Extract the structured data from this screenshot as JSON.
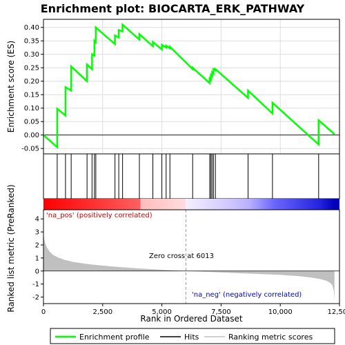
{
  "chart_data": {
    "type": "line",
    "title": "Enrichment plot: BIOCARTA_ERK_PATHWAY",
    "es_panel": {
      "ylabel": "Enrichment score (ES)",
      "ylim": [
        -0.07,
        0.43
      ],
      "yticks": [
        -0.05,
        0.0,
        0.05,
        0.1,
        0.15,
        0.2,
        0.25,
        0.3,
        0.35,
        0.4
      ],
      "ytick_labels": [
        "-0.05",
        "0.00",
        "0.05",
        "0.10",
        "0.15",
        "0.20",
        "0.25",
        "0.30",
        "0.35",
        "0.40"
      ],
      "series": [
        {
          "name": "Enrichment profile",
          "color": "#00ff00",
          "x": [
            0,
            580,
            580,
            930,
            930,
            1170,
            1170,
            1840,
            1840,
            2050,
            2050,
            2150,
            2150,
            2210,
            2210,
            3020,
            3020,
            3180,
            3180,
            3340,
            3340,
            4050,
            4050,
            4620,
            4620,
            5000,
            5000,
            5180,
            5180,
            5340,
            5340,
            6300,
            6300,
            7020,
            7020,
            7070,
            7070,
            7120,
            7120,
            7180,
            7180,
            7260,
            7260,
            8640,
            8640,
            9670,
            9670,
            11620,
            11620,
            12290
          ],
          "y": [
            0.0,
            -0.045,
            0.098,
            0.072,
            0.178,
            0.165,
            0.255,
            0.2,
            0.262,
            0.245,
            0.3,
            0.295,
            0.35,
            0.345,
            0.4,
            0.338,
            0.37,
            0.362,
            0.39,
            0.385,
            0.41,
            0.355,
            0.375,
            0.33,
            0.346,
            0.318,
            0.335,
            0.325,
            0.332,
            0.322,
            0.328,
            0.245,
            0.25,
            0.193,
            0.21,
            0.205,
            0.222,
            0.217,
            0.233,
            0.228,
            0.245,
            0.24,
            0.245,
            0.138,
            0.165,
            0.08,
            0.12,
            -0.035,
            0.055,
            0.003
          ]
        }
      ]
    },
    "hits": {
      "name": "Hits",
      "color": "#000000",
      "x": [
        580,
        930,
        1170,
        1840,
        2050,
        2150,
        2210,
        3020,
        3180,
        3340,
        4050,
        4620,
        5000,
        5180,
        5340,
        6300,
        7020,
        7070,
        7120,
        7180,
        7260,
        8640,
        9670,
        11620
      ]
    },
    "metric_panel": {
      "name": "Ranking metric scores",
      "color": "#c0c0c0",
      "ylabel": "Ranked list metric (PreRanked)",
      "ylim": [
        -2.5,
        4.7
      ],
      "yticks": [
        -2,
        -1,
        0,
        1,
        2,
        3,
        4
      ],
      "ytick_labels": [
        "-2",
        "-1",
        "0",
        "1",
        "2",
        "3",
        "4"
      ],
      "profile_x": [
        0,
        30,
        80,
        150,
        250,
        400,
        600,
        900,
        1300,
        2000,
        3000,
        4000,
        5000,
        6013,
        7000,
        8000,
        9000,
        10000,
        10800,
        11300,
        11700,
        11950,
        12100,
        12200,
        12260,
        12290
      ],
      "profile_y": [
        2.9,
        2.5,
        2.1,
        1.8,
        1.5,
        1.25,
        1.05,
        0.85,
        0.68,
        0.5,
        0.33,
        0.2,
        0.1,
        0.0,
        -0.07,
        -0.15,
        -0.22,
        -0.3,
        -0.4,
        -0.5,
        -0.62,
        -0.75,
        -0.9,
        -1.1,
        -1.5,
        -2.3
      ],
      "zero_cross_label": "Zero cross at 6013",
      "zero_cross_x": 6013,
      "pos_label": "'na_pos' (positively correlated)",
      "neg_label": "'na_neg' (negatively correlated)",
      "pos_color": "#cc0000",
      "neg_color": "#0000cc"
    },
    "xaxis": {
      "xlabel": "Rank in Ordered Dataset",
      "xlim": [
        0,
        12500
      ],
      "xticks": [
        0,
        2500,
        5000,
        7500,
        10000,
        12500
      ],
      "xtick_labels": [
        "0",
        "2,500",
        "5,000",
        "7,500",
        "10,000",
        "12,500"
      ]
    },
    "legend": {
      "placement": "bottom",
      "items": [
        {
          "label": "Enrichment profile",
          "color": "#00ff00"
        },
        {
          "label": "Hits",
          "color": "#000000"
        },
        {
          "label": "Ranking metric scores",
          "color": "#c0c0c0"
        }
      ]
    },
    "colorbar": {
      "stops": [
        {
          "x": 0,
          "color": "#ff0000"
        },
        {
          "x": 4100,
          "color": "#ff6060"
        },
        {
          "x": 4100,
          "color": "#ffbbbb"
        },
        {
          "x": 6000,
          "color": "#ffdddd"
        },
        {
          "x": 6013,
          "color": "#f4eeff"
        },
        {
          "x": 7500,
          "color": "#d8d0ff"
        },
        {
          "x": 8700,
          "color": "#b8b0ff"
        },
        {
          "x": 9750,
          "color": "#6a66ff"
        },
        {
          "x": 11700,
          "color": "#2222dd"
        },
        {
          "x": 12290,
          "color": "#0000bb"
        }
      ]
    }
  }
}
